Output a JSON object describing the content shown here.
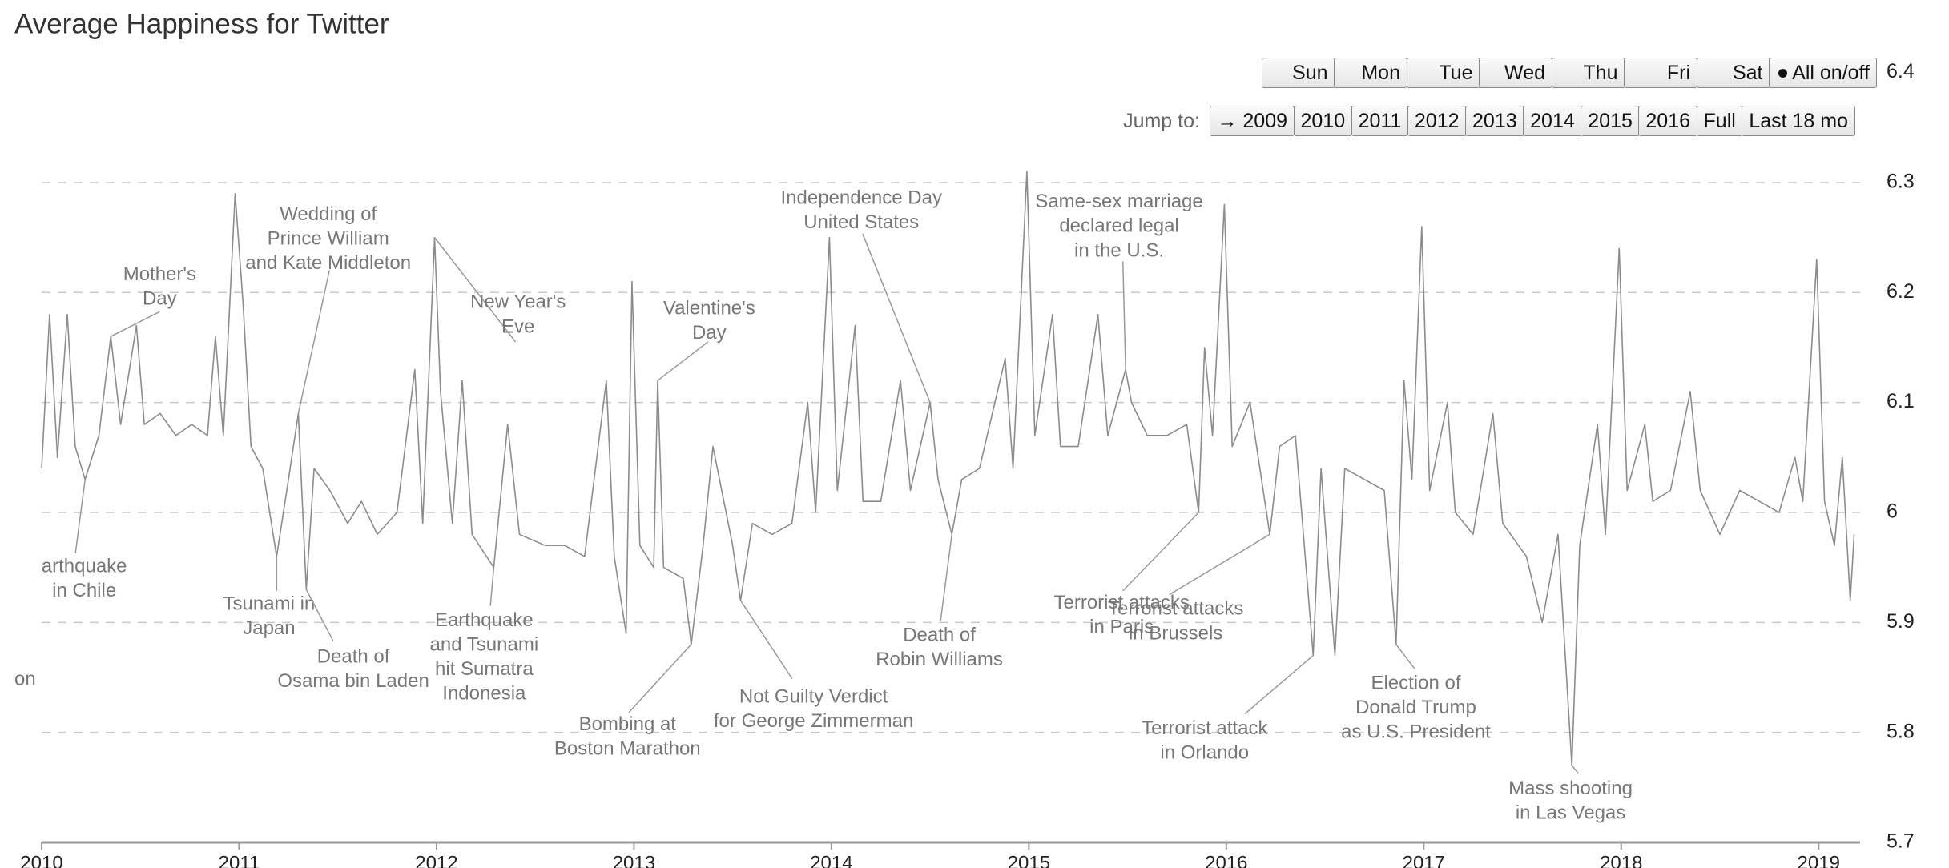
{
  "chart_data": {
    "type": "line",
    "title": "Average Happiness for Twitter",
    "color": "#8c8c8c",
    "x": [
      2010.0,
      2010.04,
      2010.08,
      2010.13,
      2010.17,
      2010.22,
      2010.29,
      2010.35,
      2010.4,
      2010.48,
      2010.52,
      2010.6,
      2010.68,
      2010.76,
      2010.84,
      2010.88,
      2010.92,
      2010.98,
      2011.02,
      2011.06,
      2011.12,
      2011.19,
      2011.25,
      2011.3,
      2011.34,
      2011.38,
      2011.46,
      2011.55,
      2011.62,
      2011.7,
      2011.8,
      2011.89,
      2011.93,
      2011.99,
      2012.02,
      2012.08,
      2012.13,
      2012.18,
      2012.29,
      2012.36,
      2012.42,
      2012.55,
      2012.65,
      2012.75,
      2012.86,
      2012.9,
      2012.96,
      2012.99,
      2013.03,
      2013.1,
      2013.12,
      2013.15,
      2013.25,
      2013.29,
      2013.35,
      2013.4,
      2013.5,
      2013.54,
      2013.6,
      2013.7,
      2013.8,
      2013.88,
      2013.92,
      2013.99,
      2014.03,
      2014.12,
      2014.16,
      2014.25,
      2014.35,
      2014.4,
      2014.5,
      2014.54,
      2014.61,
      2014.66,
      2014.75,
      2014.88,
      2014.92,
      2014.99,
      2015.03,
      2015.12,
      2015.16,
      2015.25,
      2015.35,
      2015.4,
      2015.49,
      2015.52,
      2015.6,
      2015.7,
      2015.8,
      2015.86,
      2015.89,
      2015.93,
      2015.99,
      2016.03,
      2016.12,
      2016.22,
      2016.27,
      2016.35,
      2016.44,
      2016.48,
      2016.55,
      2016.6,
      2016.7,
      2016.8,
      2016.86,
      2016.9,
      2016.94,
      2016.99,
      2017.03,
      2017.12,
      2017.16,
      2017.25,
      2017.35,
      2017.4,
      2017.52,
      2017.6,
      2017.68,
      2017.75,
      2017.79,
      2017.88,
      2017.92,
      2017.99,
      2018.03,
      2018.12,
      2018.16,
      2018.25,
      2018.35,
      2018.4,
      2018.5,
      2018.6,
      2018.7,
      2018.8,
      2018.88,
      2018.92,
      2018.99,
      2019.03,
      2019.08,
      2019.12,
      2019.16,
      2019.18
    ],
    "values": [
      6.04,
      6.18,
      6.05,
      6.18,
      6.06,
      6.03,
      6.07,
      6.16,
      6.08,
      6.17,
      6.08,
      6.09,
      6.07,
      6.08,
      6.07,
      6.16,
      6.07,
      6.29,
      6.19,
      6.06,
      6.04,
      5.96,
      6.03,
      6.09,
      5.93,
      6.04,
      6.02,
      5.99,
      6.01,
      5.98,
      6.0,
      6.13,
      5.99,
      6.25,
      6.11,
      5.99,
      6.12,
      5.98,
      5.95,
      6.08,
      5.98,
      5.97,
      5.97,
      5.96,
      6.12,
      5.96,
      5.89,
      6.21,
      5.97,
      5.95,
      6.12,
      5.95,
      5.94,
      5.88,
      5.97,
      6.06,
      5.97,
      5.92,
      5.99,
      5.98,
      5.99,
      6.1,
      6.0,
      6.25,
      6.02,
      6.17,
      6.01,
      6.01,
      6.12,
      6.02,
      6.1,
      6.03,
      5.98,
      6.03,
      6.04,
      6.14,
      6.04,
      6.31,
      6.07,
      6.18,
      6.06,
      6.06,
      6.18,
      6.07,
      6.13,
      6.1,
      6.07,
      6.07,
      6.08,
      6.0,
      6.15,
      6.07,
      6.28,
      6.06,
      6.1,
      5.98,
      6.06,
      6.07,
      5.87,
      6.04,
      5.87,
      6.04,
      6.03,
      6.02,
      5.88,
      6.12,
      6.03,
      6.26,
      6.02,
      6.1,
      6.0,
      5.98,
      6.09,
      5.99,
      5.96,
      5.9,
      5.98,
      5.77,
      5.97,
      6.08,
      5.98,
      6.24,
      6.02,
      6.08,
      6.01,
      6.02,
      6.11,
      6.02,
      5.98,
      6.02,
      6.01,
      6.0,
      6.05,
      6.01,
      6.23,
      6.01,
      5.97,
      6.05,
      5.92,
      5.98
    ],
    "xlim": [
      2010,
      2019.21
    ],
    "xticks": [
      2010,
      2011,
      2012,
      2013,
      2014,
      2015,
      2016,
      2017,
      2018,
      2019
    ],
    "ylim": [
      5.7,
      6.4
    ],
    "yticks": [
      5.7,
      5.8,
      5.9,
      6.0,
      6.1,
      6.2,
      6.3,
      6.4
    ],
    "grid": true,
    "annotations": [
      {
        "lines": [
          "Mother's",
          "Day"
        ],
        "x": 2010.35,
        "y": 6.16
      },
      {
        "lines": [
          "Wedding of",
          "Prince William",
          "and Kate Middleton"
        ],
        "x": 2011.3,
        "y": 6.09
      },
      {
        "lines": [
          "New Year's",
          "Eve"
        ],
        "x": 2011.99,
        "y": 6.25
      },
      {
        "lines": [
          "Valentine's",
          "Day"
        ],
        "x": 2013.12,
        "y": 6.12
      },
      {
        "lines": [
          "Independence Day",
          "United States"
        ],
        "x": 2014.5,
        "y": 6.1
      },
      {
        "lines": [
          "Same-sex marriage",
          "declared legal",
          "in the U.S."
        ],
        "x": 2015.49,
        "y": 6.13
      },
      {
        "lines": [
          "arthquake",
          "in Chile"
        ],
        "x": 2010.22,
        "y": 6.03
      },
      {
        "lines": [
          "Tsunami in",
          "Japan"
        ],
        "x": 2011.19,
        "y": 5.96
      },
      {
        "lines": [
          "Death of",
          "Osama bin Laden"
        ],
        "x": 2011.34,
        "y": 5.93
      },
      {
        "lines": [
          "Earthquake",
          "and Tsunami",
          "hit Sumatra",
          "Indonesia"
        ],
        "x": 2012.29,
        "y": 5.95
      },
      {
        "lines": [
          "Bombing at",
          "Boston Marathon"
        ],
        "x": 2013.29,
        "y": 5.88
      },
      {
        "lines": [
          "Not Guilty Verdict",
          "for George Zimmerman"
        ],
        "x": 2013.54,
        "y": 5.92
      },
      {
        "lines": [
          "Death of",
          "Robin Williams"
        ],
        "x": 2014.61,
        "y": 5.98
      },
      {
        "lines": [
          "Terrorist attacks",
          "in Paris"
        ],
        "x": 2015.86,
        "y": 6.0
      },
      {
        "lines": [
          "Terrorist attacks",
          "in Brussels"
        ],
        "x": 2016.22,
        "y": 5.98
      },
      {
        "lines": [
          "Terrorist attack",
          "in Orlando"
        ],
        "x": 2016.44,
        "y": 5.87
      },
      {
        "lines": [
          "Election of",
          "Donald Trump",
          "as U.S. President"
        ],
        "x": 2016.86,
        "y": 5.88
      },
      {
        "lines": [
          "Mass shooting",
          "in Las Vegas"
        ],
        "x": 2017.75,
        "y": 5.77
      },
      {
        "lines": [
          "on"
        ]
      }
    ],
    "controls": {
      "days": [
        "Sun",
        "Mon",
        "Tue",
        "Wed",
        "Thu",
        "Fri",
        "Sat"
      ],
      "all": "All on/off",
      "jump_label": "Jump to:",
      "jump": [
        "→ 2009",
        "2010",
        "2011",
        "2012",
        "2013",
        "2014",
        "2015",
        "2016",
        "Full",
        "Last 18 mo"
      ]
    }
  }
}
